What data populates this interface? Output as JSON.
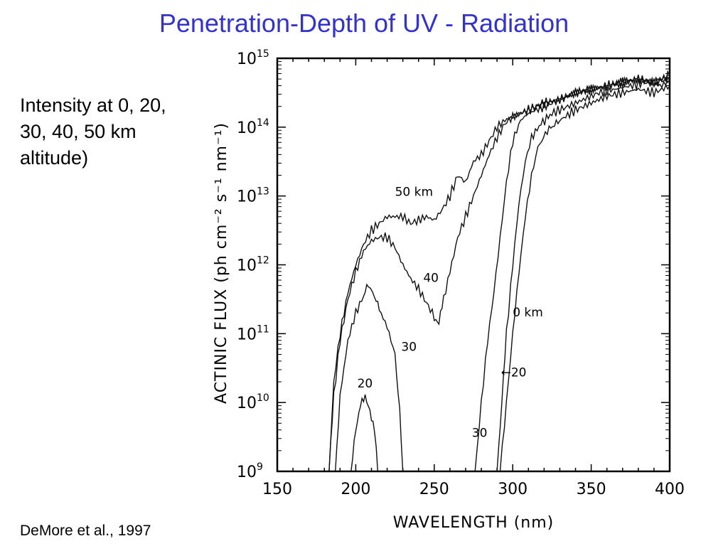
{
  "slide": {
    "title": "Penetration-Depth of UV - Radiation",
    "side_text": "Intensity at 0, 20, 30, 40, 50 km altitude)",
    "citation": "DeMore et al., 1997"
  },
  "chart_data": {
    "type": "line",
    "xlabel": "WAVELENGTH (nm)",
    "ylabel": "ACTINIC FLUX (ph cm⁻² s⁻¹ nm⁻¹)",
    "xlim": [
      150,
      400
    ],
    "ylim_log10": [
      9,
      15
    ],
    "yscale": "log",
    "x_ticks": [
      150,
      200,
      250,
      300,
      350,
      400
    ],
    "y_ticks": [
      {
        "base": "10",
        "exp": "9"
      },
      {
        "base": "10",
        "exp": "10"
      },
      {
        "base": "10",
        "exp": "11"
      },
      {
        "base": "10",
        "exp": "12"
      },
      {
        "base": "10",
        "exp": "13"
      },
      {
        "base": "10",
        "exp": "14"
      },
      {
        "base": "10",
        "exp": "15"
      }
    ],
    "grid": false,
    "series": [
      {
        "name": "50 km",
        "label": "50 km",
        "label_at": [
          225,
          13.0
        ],
        "points": [
          [
            183,
            9.0
          ],
          [
            186,
            10.3
          ],
          [
            190,
            11.0
          ],
          [
            195,
            11.6
          ],
          [
            200,
            12.0
          ],
          [
            205,
            12.3
          ],
          [
            210,
            12.5
          ],
          [
            215,
            12.6
          ],
          [
            220,
            12.7
          ],
          [
            225,
            12.7
          ],
          [
            230,
            12.7
          ],
          [
            235,
            12.6
          ],
          [
            240,
            12.65
          ],
          [
            245,
            12.7
          ],
          [
            250,
            12.65
          ],
          [
            255,
            12.8
          ],
          [
            260,
            13.0
          ],
          [
            265,
            13.3
          ],
          [
            270,
            13.2
          ],
          [
            275,
            13.5
          ],
          [
            280,
            13.6
          ],
          [
            285,
            13.8
          ],
          [
            290,
            14.0
          ],
          [
            295,
            14.1
          ],
          [
            300,
            14.15
          ],
          [
            310,
            14.25
          ],
          [
            320,
            14.35
          ],
          [
            330,
            14.4
          ],
          [
            340,
            14.5
          ],
          [
            350,
            14.55
          ],
          [
            360,
            14.6
          ],
          [
            370,
            14.65
          ],
          [
            380,
            14.7
          ],
          [
            390,
            14.65
          ],
          [
            400,
            14.75
          ]
        ]
      },
      {
        "name": "40",
        "label": "40",
        "label_at": [
          243,
          11.75
        ],
        "points": [
          [
            183,
            9.0
          ],
          [
            186,
            10.1
          ],
          [
            190,
            10.9
          ],
          [
            195,
            11.5
          ],
          [
            200,
            11.9
          ],
          [
            205,
            12.2
          ],
          [
            210,
            12.35
          ],
          [
            215,
            12.4
          ],
          [
            220,
            12.4
          ],
          [
            225,
            12.25
          ],
          [
            230,
            12.0
          ],
          [
            235,
            11.8
          ],
          [
            240,
            11.65
          ],
          [
            245,
            11.45
          ],
          [
            250,
            11.25
          ],
          [
            253,
            11.15
          ],
          [
            256,
            11.5
          ],
          [
            260,
            11.9
          ],
          [
            265,
            12.4
          ],
          [
            270,
            12.7
          ],
          [
            275,
            13.0
          ],
          [
            280,
            13.3
          ],
          [
            285,
            13.6
          ],
          [
            290,
            13.85
          ],
          [
            295,
            14.05
          ],
          [
            300,
            14.15
          ],
          [
            310,
            14.25
          ],
          [
            320,
            14.35
          ],
          [
            330,
            14.4
          ],
          [
            340,
            14.5
          ],
          [
            350,
            14.55
          ],
          [
            360,
            14.6
          ],
          [
            370,
            14.65
          ],
          [
            380,
            14.7
          ],
          [
            390,
            14.65
          ],
          [
            400,
            14.7
          ]
        ]
      },
      {
        "name": "30",
        "label": "30",
        "label_at": [
          229,
          10.75
        ],
        "points": [
          [
            187,
            9.0
          ],
          [
            190,
            10.1
          ],
          [
            195,
            10.9
          ],
          [
            200,
            11.3
          ],
          [
            205,
            11.55
          ],
          [
            208,
            11.7
          ],
          [
            212,
            11.55
          ],
          [
            215,
            11.35
          ],
          [
            220,
            11.1
          ],
          [
            225,
            10.7
          ],
          [
            228,
            9.9
          ],
          [
            230,
            9.0
          ]
        ]
      },
      {
        "name": "20",
        "label": "20",
        "label_at": [
          201,
          10.22
        ],
        "points": [
          [
            197,
            9.0
          ],
          [
            200,
            9.6
          ],
          [
            203,
            10.0
          ],
          [
            206,
            10.05
          ],
          [
            209,
            9.9
          ],
          [
            212,
            9.6
          ],
          [
            214,
            9.0
          ]
        ]
      },
      {
        "name": "30",
        "label": "30",
        "label_at": [
          274,
          9.5
        ],
        "points": [
          [
            276,
            9.0
          ],
          [
            280,
            10.0
          ],
          [
            284,
            10.9
          ],
          [
            288,
            11.6
          ],
          [
            292,
            12.4
          ],
          [
            296,
            13.2
          ],
          [
            300,
            13.8
          ],
          [
            305,
            14.1
          ],
          [
            310,
            14.2
          ],
          [
            320,
            14.3
          ],
          [
            330,
            14.4
          ],
          [
            340,
            14.5
          ],
          [
            350,
            14.55
          ],
          [
            360,
            14.6
          ],
          [
            370,
            14.65
          ],
          [
            380,
            14.7
          ],
          [
            390,
            14.65
          ],
          [
            400,
            14.75
          ]
        ]
      },
      {
        "name": "20",
        "label": "←20",
        "label_at": [
          292.5,
          10.38
        ],
        "points": [
          [
            290,
            9.0
          ],
          [
            293,
            10.0
          ],
          [
            296,
            11.0
          ],
          [
            300,
            12.0
          ],
          [
            304,
            12.9
          ],
          [
            308,
            13.5
          ],
          [
            312,
            13.85
          ],
          [
            318,
            14.05
          ],
          [
            325,
            14.2
          ],
          [
            335,
            14.3
          ],
          [
            345,
            14.4
          ],
          [
            355,
            14.5
          ],
          [
            365,
            14.55
          ],
          [
            375,
            14.6
          ],
          [
            385,
            14.65
          ],
          [
            395,
            14.6
          ],
          [
            400,
            14.7
          ]
        ]
      },
      {
        "name": "0 km",
        "label": "0 km",
        "label_at": [
          300,
          11.25
        ],
        "points": [
          [
            292,
            9.0
          ],
          [
            296,
            10.0
          ],
          [
            300,
            11.0
          ],
          [
            304,
            11.9
          ],
          [
            308,
            12.7
          ],
          [
            312,
            13.3
          ],
          [
            316,
            13.7
          ],
          [
            322,
            13.95
          ],
          [
            330,
            14.1
          ],
          [
            340,
            14.25
          ],
          [
            350,
            14.35
          ],
          [
            360,
            14.45
          ],
          [
            370,
            14.5
          ],
          [
            380,
            14.55
          ],
          [
            390,
            14.5
          ],
          [
            400,
            14.6
          ]
        ]
      }
    ]
  }
}
